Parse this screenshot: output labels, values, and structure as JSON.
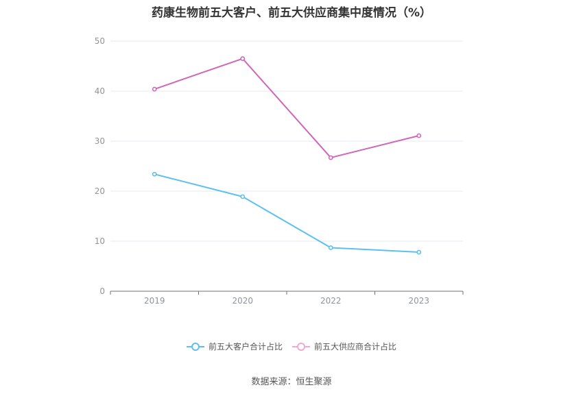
{
  "chart_data": {
    "type": "line",
    "title": "药康生物前五大客户、前五大供应商集中度情况（%）",
    "categories": [
      "2019",
      "2020",
      "2022",
      "2023"
    ],
    "yticks": [
      "0",
      "10",
      "20",
      "30",
      "40",
      "50"
    ],
    "ylim": [
      0,
      50
    ],
    "grid": true,
    "legend_position": "bottom-center",
    "series": [
      {
        "name": "前五大客户合计占比",
        "values": [
          23.4,
          18.9,
          8.7,
          7.8
        ],
        "color": "#5bc0f0"
      },
      {
        "name": "前五大供应商合计占比",
        "values": [
          40.4,
          46.5,
          26.7,
          31.1
        ],
        "color": "#d066b7"
      }
    ]
  },
  "legend_colors": [
    "#5bc0f0",
    "#f0a8d8"
  ],
  "source": "数据来源：恒生聚源"
}
